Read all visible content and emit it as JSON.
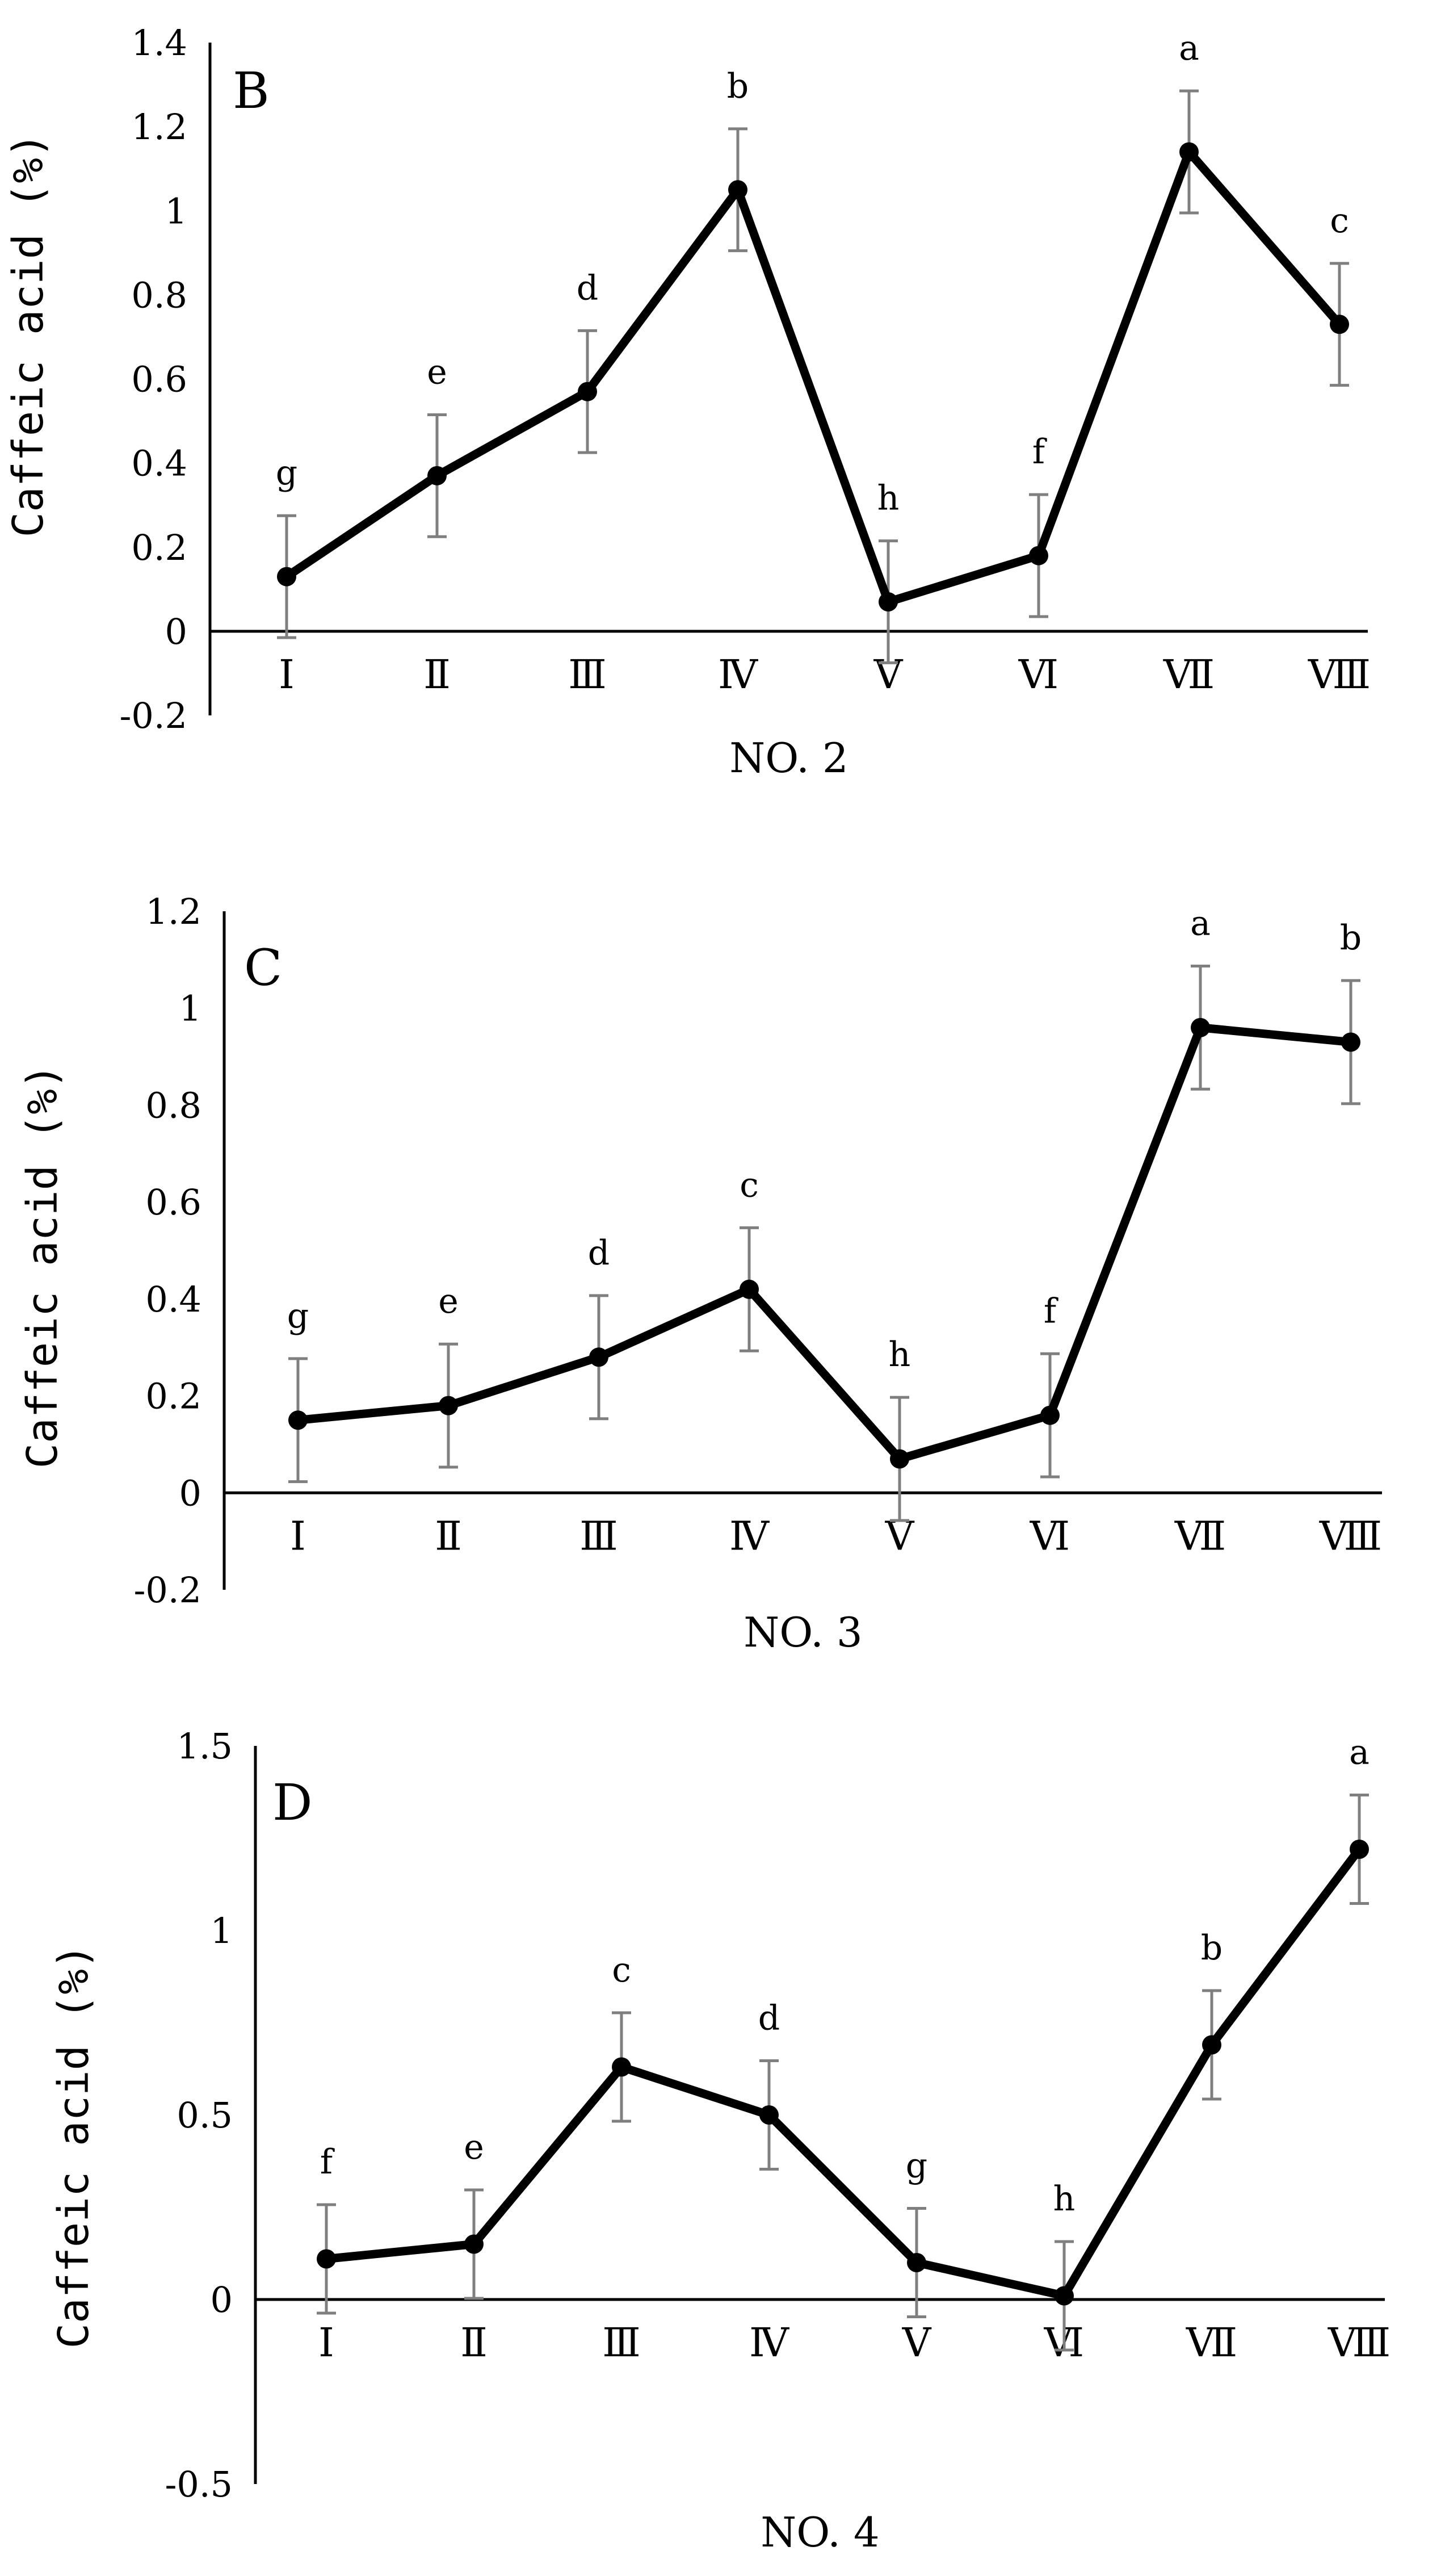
{
  "charts": [
    {
      "panel": "B",
      "type": "line",
      "ylabel": "Caffeic acid (%)",
      "xlabel": "NO. 2",
      "ylim": [
        -0.2,
        1.4
      ],
      "ytick_labels": [
        "-0.2",
        "0",
        "0.2",
        "0.4",
        "0.6",
        "0.8",
        "1",
        "1.2",
        "1.4"
      ],
      "ytick_values": [
        -0.2,
        0,
        0.2,
        0.4,
        0.6,
        0.8,
        1.0,
        1.2,
        1.4
      ],
      "categories": [
        "Ⅰ",
        "Ⅱ",
        "Ⅲ",
        "Ⅳ",
        "Ⅴ",
        "Ⅵ",
        "Ⅶ",
        "Ⅷ"
      ],
      "values": [
        0.13,
        0.37,
        0.57,
        1.05,
        0.07,
        0.18,
        1.14,
        0.73
      ],
      "errors": [
        0.145,
        0.145,
        0.145,
        0.145,
        0.145,
        0.145,
        0.145,
        0.145
      ],
      "significance": [
        "g",
        "e",
        "d",
        "b",
        "h",
        "f",
        "a",
        "c"
      ]
    },
    {
      "panel": "C",
      "type": "line",
      "ylabel": "Caffeic acid (%)",
      "xlabel": "NO. 3",
      "ylim": [
        -0.2,
        1.2
      ],
      "ytick_labels": [
        "-0.2",
        "0",
        "0.2",
        "0.4",
        "0.6",
        "0.8",
        "1",
        "1.2"
      ],
      "ytick_values": [
        -0.2,
        0,
        0.2,
        0.4,
        0.6,
        0.8,
        1.0,
        1.2
      ],
      "categories": [
        "Ⅰ",
        "Ⅱ",
        "Ⅲ",
        "Ⅳ",
        "Ⅴ",
        "Ⅵ",
        "Ⅶ",
        "Ⅷ"
      ],
      "values": [
        0.15,
        0.18,
        0.28,
        0.42,
        0.07,
        0.16,
        0.96,
        0.93
      ],
      "errors": [
        0.127,
        0.127,
        0.127,
        0.127,
        0.127,
        0.127,
        0.127,
        0.127
      ],
      "significance": [
        "g",
        "e",
        "d",
        "c",
        "h",
        "f",
        "a",
        "b"
      ]
    },
    {
      "panel": "D",
      "type": "line",
      "ylabel": "Caffeic acid (%)",
      "xlabel": "NO. 4",
      "ylim": [
        -0.5,
        1.5
      ],
      "ytick_labels": [
        "-0.5",
        "0",
        "0.5",
        "1",
        "1.5"
      ],
      "ytick_values": [
        -0.5,
        0,
        0.5,
        1.0,
        1.5
      ],
      "categories": [
        "Ⅰ",
        "Ⅱ",
        "Ⅲ",
        "Ⅳ",
        "Ⅴ",
        "Ⅵ",
        "Ⅶ",
        "Ⅷ"
      ],
      "values": [
        0.11,
        0.15,
        0.63,
        0.5,
        0.1,
        0.01,
        0.69,
        1.22
      ],
      "errors": [
        0.147,
        0.147,
        0.147,
        0.147,
        0.147,
        0.147,
        0.147,
        0.147
      ],
      "significance": [
        "f",
        "e",
        "c",
        "d",
        "g",
        "h",
        "b",
        "a"
      ]
    }
  ],
  "colors": {
    "line": "#000000",
    "errorbar": "#7f7f7f",
    "axis": "#000000"
  }
}
